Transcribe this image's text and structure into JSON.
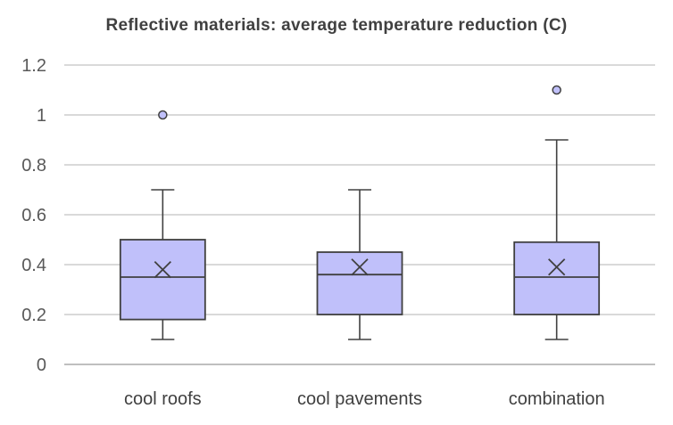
{
  "chart_data": {
    "type": "box",
    "title": "Reflective materials: average temperature reduction (C)",
    "xlabel": "",
    "ylabel": "",
    "ylim": [
      0,
      1.2
    ],
    "yticks": [
      "0",
      "0.2",
      "0.4",
      "0.6",
      "0.8",
      "1",
      "1.2"
    ],
    "grid": true,
    "legend": "none",
    "colors": {
      "box_fill": "#c0c0fa",
      "box_stroke": "#404040",
      "grid": "#d9d9d9",
      "outlier_fill": "#c0c0fa"
    },
    "categories": [
      "cool roofs",
      "cool pavements",
      "combination"
    ],
    "boxes": [
      {
        "category": "cool roofs",
        "min": 0.1,
        "q1": 0.18,
        "median": 0.35,
        "q3": 0.5,
        "max": 0.7,
        "mean": 0.38,
        "outliers": [
          1.0
        ]
      },
      {
        "category": "cool pavements",
        "min": 0.1,
        "q1": 0.2,
        "median": 0.36,
        "q3": 0.45,
        "max": 0.7,
        "mean": 0.39,
        "outliers": []
      },
      {
        "category": "combination",
        "min": 0.1,
        "q1": 0.2,
        "median": 0.35,
        "q3": 0.49,
        "max": 0.9,
        "mean": 0.39,
        "outliers": [
          1.1
        ]
      }
    ]
  }
}
